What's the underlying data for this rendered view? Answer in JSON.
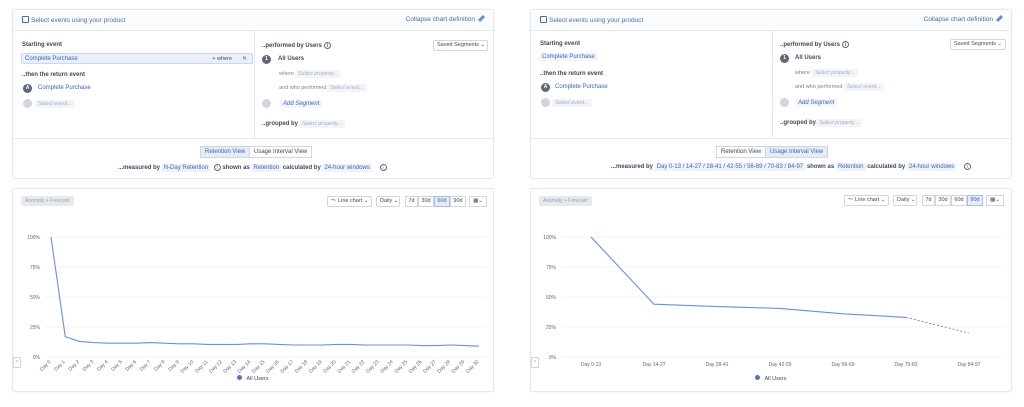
{
  "colors": {
    "accent": "#3f64b8",
    "line": "#6b8fd6"
  },
  "panels": [
    {
      "select_label": "Select events using your product",
      "collapse_label": "Collapse chart definition",
      "starting_label": "Starting event",
      "starting_event": "Complete Purchase",
      "where_label": "+ where",
      "close_glyph": "✕",
      "return_label": "..then the return event",
      "return_marker": "A",
      "return_event": "Complete Purchase",
      "select_event_ph": "Select event...",
      "performed_label": "..performed by Users",
      "saved_segments": "Saved Segments",
      "seg_marker": "1",
      "all_users": "All Users",
      "where_word": "where",
      "select_property_ph": "Select property...",
      "who_performed": "and who performed",
      "add_segment": "Add Segment",
      "grouped_label": "..grouped by",
      "tab_retention": "Retention View",
      "tab_usage": "Usage Interval View",
      "measured_label": "...measured by",
      "measured_value": "N-Day Retention",
      "shown_label": "shown as",
      "shown_value": "Retention",
      "calc_label": "calculated by",
      "calc_value": "24-hour windows",
      "anomaly": "Anomaly + Forecast",
      "chart_type": "Line chart",
      "interval": "Daily",
      "ranges": [
        "7d",
        "30d",
        "60d",
        "90d"
      ],
      "legend": "All Users"
    },
    {
      "select_label": "Select events using your product",
      "collapse_label": "Collapse chart definition",
      "starting_label": "Starting event",
      "starting_event": "Complete Purchase",
      "return_label": "..then the return event",
      "return_marker": "A",
      "return_event": "Complete Purchase",
      "select_event_ph": "Select event...",
      "performed_label": "..performed by Users",
      "saved_segments": "Saved Segments",
      "seg_marker": "1",
      "all_users": "All Users",
      "where_word": "where",
      "select_property_ph": "Select property...",
      "who_performed": "and who performed",
      "add_segment": "Add Segment",
      "grouped_label": "..grouped by",
      "tab_retention": "Retention View",
      "tab_usage": "Usage Interval View",
      "measured_label": "...measured by",
      "measured_value": "Day 0-13 / 14-27 / 28-41 / 42-55 / 56-69 / 70-83 / 84-97",
      "shown_label": "shown as",
      "shown_value": "Retention",
      "calc_label": "calculated by",
      "calc_value": "24-hour windows",
      "anomaly": "Anomaly + Forecast",
      "chart_type": "Line chart",
      "interval": "Daily",
      "ranges": [
        "7d",
        "30d",
        "60d",
        "90d"
      ],
      "legend": "All Users"
    }
  ],
  "chart_data": [
    {
      "type": "line",
      "title": "",
      "xlabel": "",
      "ylabel": "",
      "ylim": [
        0,
        100
      ],
      "yticks": [
        "0%",
        "25%",
        "50%",
        "75%",
        "100%"
      ],
      "categories": [
        "Day 0",
        "Day 1",
        "Day 2",
        "Day 3",
        "Day 4",
        "Day 5",
        "Day 6",
        "Day 7",
        "Day 8",
        "Day 9",
        "Day 10",
        "Day 11",
        "Day 12",
        "Day 13",
        "Day 14",
        "Day 15",
        "Day 16",
        "Day 17",
        "Day 18",
        "Day 19",
        "Day 20",
        "Day 21",
        "Day 22",
        "Day 23",
        "Day 24",
        "Day 25",
        "Day 26",
        "Day 27",
        "Day 28",
        "Day 29",
        "Day 30"
      ],
      "series": [
        {
          "name": "All Users",
          "values": [
            100,
            17,
            13,
            12,
            11.5,
            11.5,
            11.5,
            12,
            11.5,
            11,
            11,
            10.5,
            10.5,
            10.5,
            11,
            11,
            10.5,
            10,
            10,
            10,
            10.5,
            10.5,
            10,
            10,
            10,
            10,
            9.5,
            9.5,
            10,
            9.5,
            9
          ]
        }
      ]
    },
    {
      "type": "line",
      "title": "",
      "xlabel": "",
      "ylabel": "",
      "ylim": [
        0,
        100
      ],
      "yticks": [
        "0%",
        "25%",
        "50%",
        "75%",
        "100%"
      ],
      "categories": [
        "Day 0-13",
        "Day 14-27",
        "Day 28-41",
        "Day 42-55",
        "Day 56-69",
        "Day 70-83",
        "Day 84-97"
      ],
      "series": [
        {
          "name": "All Users",
          "values": [
            100,
            44,
            42,
            40.5,
            36,
            33,
            20
          ],
          "dashed_from_index": 5
        }
      ]
    }
  ]
}
